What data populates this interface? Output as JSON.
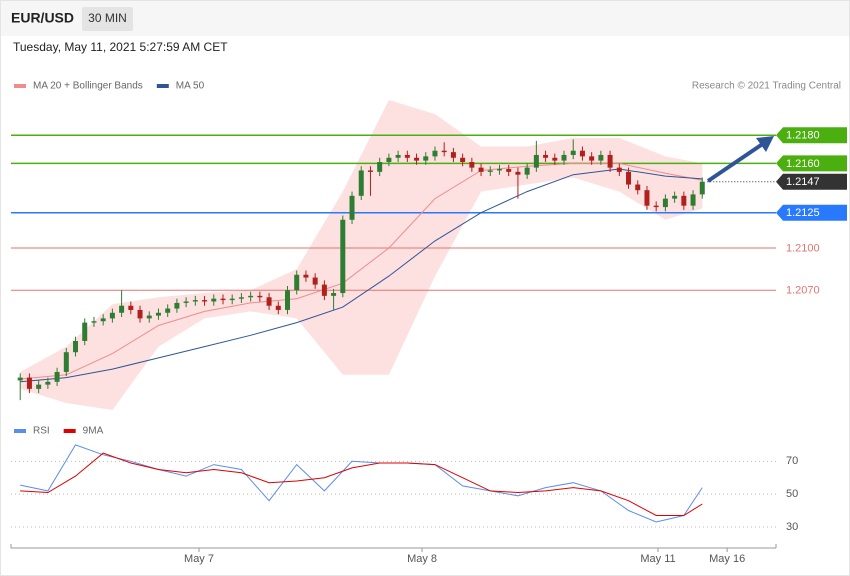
{
  "header": {
    "symbol": "EUR/USD",
    "interval": "30 MIN",
    "timestamp": "Tuesday, May 11, 2021 5:27:59 AM CET",
    "credit": "Research © 2021 Trading Central"
  },
  "chart_data": [
    {
      "type": "candlestick",
      "up_color": "#2e7d32",
      "down_color": "#b0201c",
      "xlim": [
        -1,
        82
      ],
      "ylim": [
        1.1985,
        1.2205
      ],
      "x": [
        0,
        1,
        2,
        3,
        4,
        5,
        6,
        7,
        8,
        9,
        10,
        11,
        12,
        13,
        14,
        15,
        16,
        17,
        18,
        19,
        20,
        21,
        22,
        23,
        24,
        25,
        26,
        27,
        28,
        29,
        30,
        31,
        32,
        33,
        34,
        35,
        36,
        37,
        38,
        39,
        40,
        41,
        42,
        43,
        44,
        45,
        46,
        47,
        48,
        49,
        50,
        51,
        52,
        53,
        54,
        55,
        56,
        57,
        58,
        59,
        60,
        61,
        62,
        63,
        64,
        65,
        66,
        67,
        68,
        69,
        70,
        71,
        72,
        73,
        74
      ],
      "open": [
        1.2006,
        1.2008,
        1.2,
        1.2003,
        1.2005,
        1.2012,
        1.2026,
        1.2034,
        1.2047,
        1.2048,
        1.205,
        1.2054,
        1.2059,
        1.2056,
        1.205,
        1.2052,
        1.2054,
        1.2057,
        1.2061,
        1.2062,
        1.2063,
        1.2062,
        1.2064,
        1.2063,
        1.2064,
        1.2065,
        1.2066,
        1.2065,
        1.2059,
        1.2056,
        1.207,
        1.2081,
        1.2079,
        1.2074,
        1.2066,
        1.2068,
        1.212,
        1.2137,
        1.2155,
        1.2154,
        1.2161,
        1.2164,
        1.2166,
        1.2164,
        1.2162,
        1.2165,
        1.2169,
        1.2168,
        1.2164,
        1.2161,
        1.2157,
        1.2154,
        1.2155,
        1.2156,
        1.2154,
        1.2152,
        1.2157,
        1.2166,
        1.2164,
        1.2162,
        1.2166,
        1.2169,
        1.2165,
        1.2162,
        1.2166,
        1.2157,
        1.2154,
        1.2145,
        1.2141,
        1.213,
        1.2129,
        1.2135,
        1.2137,
        1.213,
        1.2138
      ],
      "high": [
        1.2011,
        1.2011,
        1.2006,
        1.2008,
        1.2015,
        1.2029,
        1.2037,
        1.205,
        1.2051,
        1.2053,
        1.2057,
        1.207,
        1.2062,
        1.2059,
        1.2055,
        1.2057,
        1.206,
        1.2064,
        1.2065,
        1.2066,
        1.2066,
        1.2067,
        1.2067,
        1.2067,
        1.2068,
        1.2069,
        1.2069,
        1.2068,
        1.2062,
        1.2073,
        1.2084,
        1.2084,
        1.2082,
        1.2077,
        1.2071,
        1.2123,
        1.214,
        1.2158,
        1.2158,
        1.2164,
        1.2167,
        1.2169,
        1.2169,
        1.2167,
        1.2168,
        1.2172,
        1.2175,
        1.2171,
        1.2167,
        1.2164,
        1.216,
        1.2158,
        1.2159,
        1.2159,
        1.2157,
        1.216,
        1.2176,
        1.2169,
        1.2167,
        1.2169,
        1.2177,
        1.2172,
        1.2168,
        1.2169,
        1.2169,
        1.216,
        1.2157,
        1.2148,
        1.2144,
        1.2133,
        1.2138,
        1.214,
        1.214,
        1.2141,
        1.215
      ],
      "low": [
        1.1992,
        1.1997,
        1.1997,
        1.2,
        1.2002,
        1.2009,
        1.2023,
        1.2031,
        1.2044,
        1.2045,
        1.2047,
        1.2051,
        1.2053,
        1.2047,
        1.2047,
        1.2049,
        1.2051,
        1.2054,
        1.2058,
        1.2059,
        1.2059,
        1.2059,
        1.206,
        1.206,
        1.2061,
        1.2062,
        1.2062,
        1.2056,
        1.2053,
        1.2053,
        1.2067,
        1.2076,
        1.2071,
        1.2063,
        1.2056,
        1.2065,
        1.2117,
        1.2134,
        1.2137,
        1.2151,
        1.2158,
        1.2161,
        1.2161,
        1.2159,
        1.2159,
        1.2162,
        1.2165,
        1.2161,
        1.2158,
        1.2154,
        1.2151,
        1.2151,
        1.2152,
        1.2151,
        1.2135,
        1.2149,
        1.2154,
        1.2161,
        1.2159,
        1.2159,
        1.2163,
        1.2162,
        1.2159,
        1.2159,
        1.2154,
        1.2151,
        1.2142,
        1.2138,
        1.2127,
        1.2126,
        1.2126,
        1.2132,
        1.2127,
        1.2127,
        1.2135
      ],
      "close": [
        1.2008,
        1.2,
        1.2003,
        1.2005,
        1.2012,
        1.2026,
        1.2034,
        1.2047,
        1.2048,
        1.205,
        1.2054,
        1.2059,
        1.2056,
        1.205,
        1.2052,
        1.2054,
        1.2057,
        1.2061,
        1.2062,
        1.2063,
        1.2062,
        1.2064,
        1.2063,
        1.2064,
        1.2065,
        1.2066,
        1.2065,
        1.2059,
        1.2056,
        1.207,
        1.2081,
        1.2079,
        1.2074,
        1.2066,
        1.2068,
        1.212,
        1.2137,
        1.2155,
        1.2154,
        1.2161,
        1.2164,
        1.2166,
        1.2164,
        1.2162,
        1.2165,
        1.2169,
        1.2168,
        1.2164,
        1.2161,
        1.2157,
        1.2154,
        1.2155,
        1.2156,
        1.2154,
        1.2152,
        1.2157,
        1.2166,
        1.2164,
        1.2162,
        1.2166,
        1.2169,
        1.2165,
        1.2162,
        1.2166,
        1.2157,
        1.2154,
        1.2145,
        1.2141,
        1.213,
        1.2129,
        1.2135,
        1.2137,
        1.213,
        1.2138,
        1.2147
      ],
      "bands": {
        "color": "#fde0e0",
        "x": [
          0,
          5,
          10,
          15,
          20,
          25,
          30,
          35,
          40,
          45,
          50,
          55,
          60,
          65,
          70,
          74
        ],
        "upper": [
          1.2012,
          1.203,
          1.206,
          1.2065,
          1.2068,
          1.207,
          1.2085,
          1.214,
          1.2205,
          1.2195,
          1.2172,
          1.2172,
          1.2178,
          1.2178,
          1.2165,
          1.216
        ],
        "lower": [
          1.2,
          1.199,
          1.1985,
          1.203,
          1.205,
          1.2055,
          1.205,
          1.201,
          1.201,
          1.208,
          1.214,
          1.2145,
          1.215,
          1.214,
          1.212,
          1.2128
        ]
      },
      "series": [
        {
          "name": "MA 20 + Bollinger Bands",
          "color": "#f08c8c",
          "x": [
            0,
            5,
            10,
            15,
            20,
            25,
            30,
            35,
            40,
            45,
            50,
            55,
            60,
            65,
            70,
            74
          ],
          "values": [
            1.2007,
            1.201,
            1.2025,
            1.2045,
            1.2055,
            1.2061,
            1.2064,
            1.2075,
            1.21,
            1.2135,
            1.2155,
            1.2158,
            1.216,
            1.216,
            1.2153,
            1.2148
          ]
        },
        {
          "name": "MA 50",
          "color": "#2f5597",
          "x": [
            0,
            5,
            10,
            15,
            20,
            25,
            30,
            35,
            40,
            45,
            50,
            55,
            60,
            65,
            70,
            74
          ],
          "values": [
            1.2005,
            1.2008,
            1.2014,
            1.2022,
            1.203,
            1.2038,
            1.2047,
            1.2058,
            1.208,
            1.2105,
            1.2125,
            1.214,
            1.2152,
            1.2156,
            1.2151,
            1.2149
          ]
        }
      ],
      "levels": [
        {
          "value": 1.218,
          "label": "1.2180",
          "color": "#4caf10",
          "style": "solid",
          "box": true
        },
        {
          "value": 1.216,
          "label": "1.2160",
          "color": "#4caf10",
          "style": "solid",
          "box": true
        },
        {
          "value": 1.2147,
          "label": "1.2147",
          "color": "#333333",
          "style": "dotted",
          "box": true
        },
        {
          "value": 1.2125,
          "label": "1.2125",
          "color": "#2979ff",
          "style": "solid",
          "box": true
        },
        {
          "value": 1.21,
          "label": "1.2100",
          "color": "#e57373",
          "style": "solid",
          "box": false
        },
        {
          "value": 1.207,
          "label": "1.2070",
          "color": "#e57373",
          "style": "solid",
          "box": false
        }
      ]
    },
    {
      "type": "line",
      "xlim": [
        -1,
        82
      ],
      "ylim": [
        19,
        83
      ],
      "yticks": [
        30,
        50,
        70
      ],
      "grid": true,
      "xticks": [
        {
          "value": 19.4,
          "label": "May 7"
        },
        {
          "value": 43.6,
          "label": "May 8"
        },
        {
          "value": 69.2,
          "label": "May 11"
        },
        {
          "value": 76.7,
          "label": "May 16"
        }
      ],
      "series": [
        {
          "name": "RSI",
          "color": "#5b8def",
          "x": [
            0,
            3,
            6,
            9,
            12,
            15,
            18,
            21,
            24,
            27,
            30,
            33,
            36,
            39,
            42,
            45,
            48,
            51,
            54,
            57,
            60,
            63,
            66,
            69,
            72,
            74
          ],
          "values": [
            55.5,
            52,
            80,
            74,
            70,
            65,
            61,
            68,
            65,
            46,
            68,
            52,
            70,
            69,
            69,
            68,
            55,
            52,
            49,
            54,
            57,
            52,
            40,
            33,
            37,
            54
          ]
        },
        {
          "name": "9MA",
          "color": "#e00000",
          "x": [
            0,
            3,
            6,
            9,
            12,
            15,
            18,
            21,
            24,
            27,
            30,
            33,
            36,
            39,
            42,
            45,
            48,
            51,
            54,
            57,
            60,
            63,
            66,
            69,
            72,
            74
          ],
          "values": [
            52,
            51,
            61,
            75,
            69,
            65,
            63,
            65,
            63,
            57,
            58,
            60,
            66,
            69,
            69,
            68,
            60,
            52,
            51,
            52,
            54,
            52,
            46,
            37,
            37,
            44
          ]
        }
      ]
    }
  ]
}
